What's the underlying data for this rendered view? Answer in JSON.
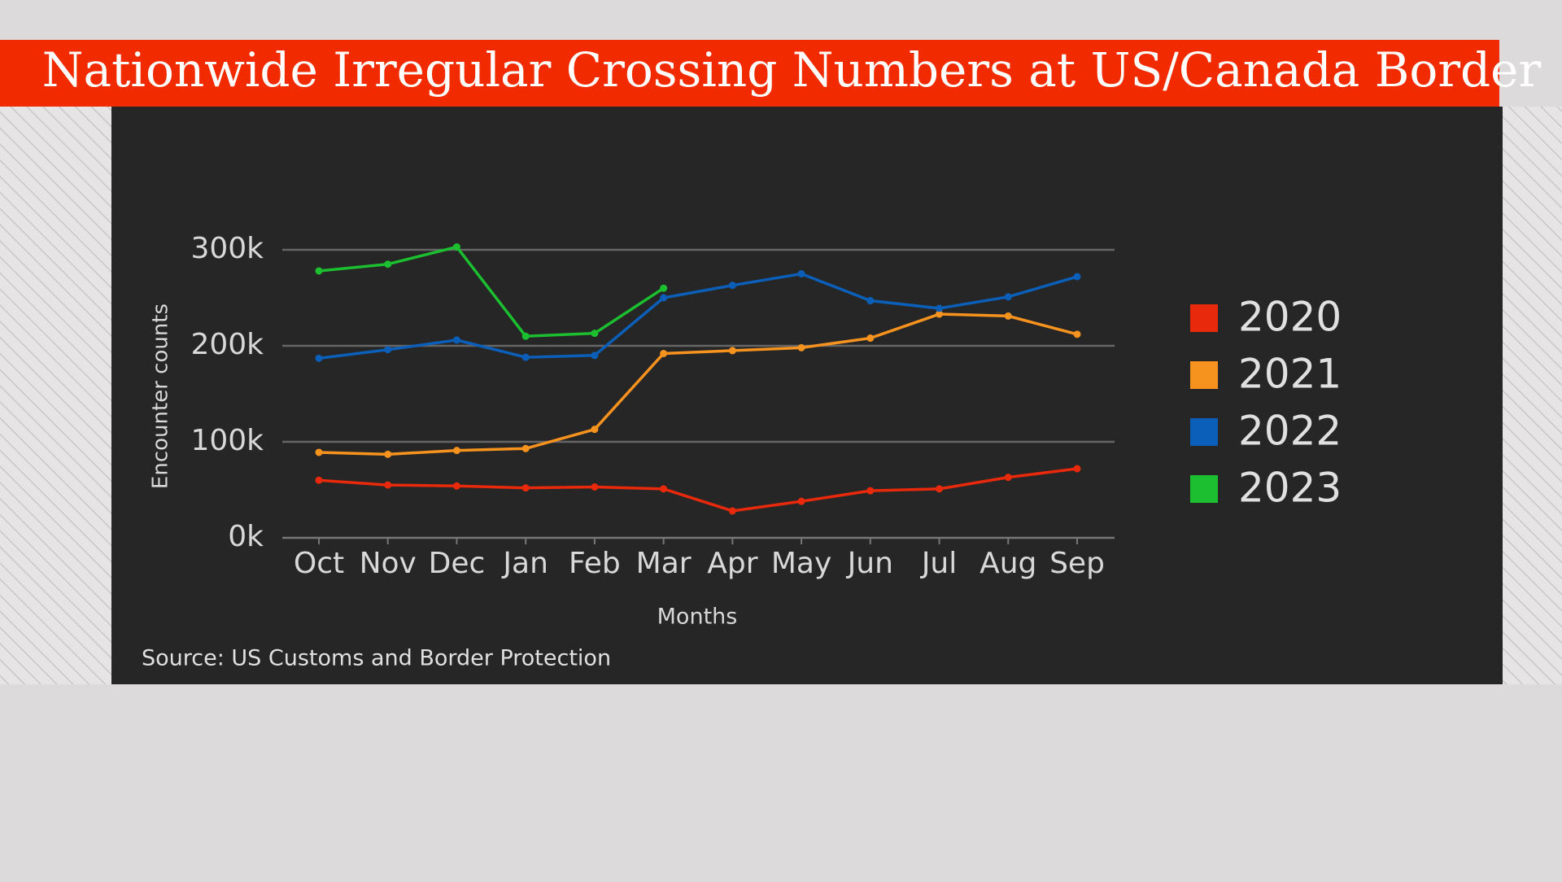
{
  "chart_data": {
    "type": "line",
    "title": "Nationwide Irregular Crossing Numbers at US/Canada Border",
    "source": "Source: US Customs and Border Protection",
    "x_label": "Months",
    "y_label": "Encounter counts",
    "categories": [
      "Oct",
      "Nov",
      "Dec",
      "Jan",
      "Feb",
      "Mar",
      "Apr",
      "May",
      "Jun",
      "Jul",
      "Aug",
      "Sep"
    ],
    "series": [
      {
        "name": "2020",
        "color": "#e8290b",
        "values": [
          60000,
          55000,
          54000,
          52000,
          53000,
          51000,
          28000,
          38000,
          49000,
          51000,
          63000,
          72000
        ]
      },
      {
        "name": "2021",
        "color": "#f6921e",
        "values": [
          89000,
          87000,
          91000,
          93000,
          113000,
          192000,
          195000,
          198000,
          208000,
          233000,
          231000,
          212000
        ]
      },
      {
        "name": "2022",
        "color": "#0b5fb8",
        "values": [
          187000,
          196000,
          206000,
          188000,
          190000,
          250000,
          263000,
          275000,
          247000,
          239000,
          251000,
          272000
        ]
      },
      {
        "name": "2023",
        "color": "#1bbf2f",
        "values": [
          278000,
          285000,
          303000,
          210000,
          213000,
          260000,
          null,
          null,
          null,
          null,
          null,
          null
        ]
      }
    ],
    "ylim": [
      0,
      300000
    ],
    "yticks": [
      {
        "value": 0,
        "label": "0k"
      },
      {
        "value": 100000,
        "label": "100k"
      },
      {
        "value": 200000,
        "label": "200k"
      },
      {
        "value": 300000,
        "label": "300k"
      }
    ],
    "grid": true
  }
}
